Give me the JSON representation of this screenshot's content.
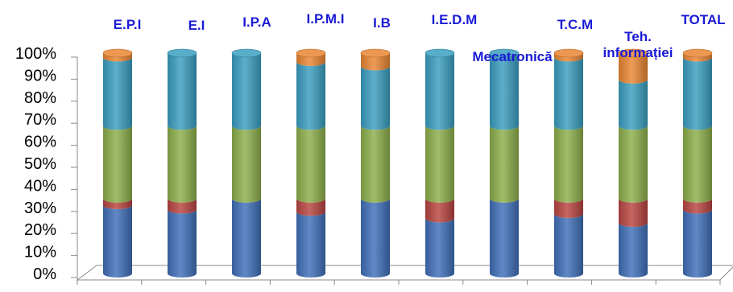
{
  "chart_data": {
    "type": "bar",
    "stacked": true,
    "percent_stacked": true,
    "style": "3d-cylinder",
    "ylim": [
      0,
      100
    ],
    "y_ticks": [
      "0%",
      "10%",
      "20%",
      "30%",
      "40%",
      "50%",
      "60%",
      "70%",
      "80%",
      "90%",
      "100%"
    ],
    "categories": [
      "E.P.I",
      "E.I",
      "I.P.A",
      "I.P.M.I",
      "I.B",
      "I.E.D.M",
      "Mecatronică",
      "T.C.M",
      "Teh. informației",
      "TOTAL"
    ],
    "category_label_lines": [
      [
        "E.P.I"
      ],
      [
        "E.I"
      ],
      [
        "I.P.A"
      ],
      [
        "I.P.M.I"
      ],
      [
        "I.B"
      ],
      [
        "I.E.D.M"
      ],
      [
        "Mecatronică"
      ],
      [
        "T.C.M"
      ],
      [
        "Teh.",
        "informației"
      ],
      [
        "TOTAL"
      ]
    ],
    "series": [
      {
        "color": "#3f6fb8",
        "values": [
          31,
          29,
          34,
          28,
          34,
          25,
          34,
          27,
          23,
          29
        ]
      },
      {
        "color": "#b84440",
        "values": [
          3,
          5,
          0,
          6,
          0,
          9,
          0,
          7,
          11,
          5
        ]
      },
      {
        "color": "#8cae4a",
        "values": [
          33,
          33,
          33,
          33,
          33,
          33,
          33,
          33,
          33,
          33
        ]
      },
      {
        "color": "#3a9ec0",
        "values": [
          31,
          33,
          33,
          29,
          27,
          33,
          33,
          31,
          21,
          31
        ]
      },
      {
        "color": "#e98633",
        "values": [
          2,
          0,
          0,
          4,
          6,
          0,
          0,
          2,
          12,
          2
        ]
      }
    ],
    "grid": false,
    "legend": "none"
  }
}
